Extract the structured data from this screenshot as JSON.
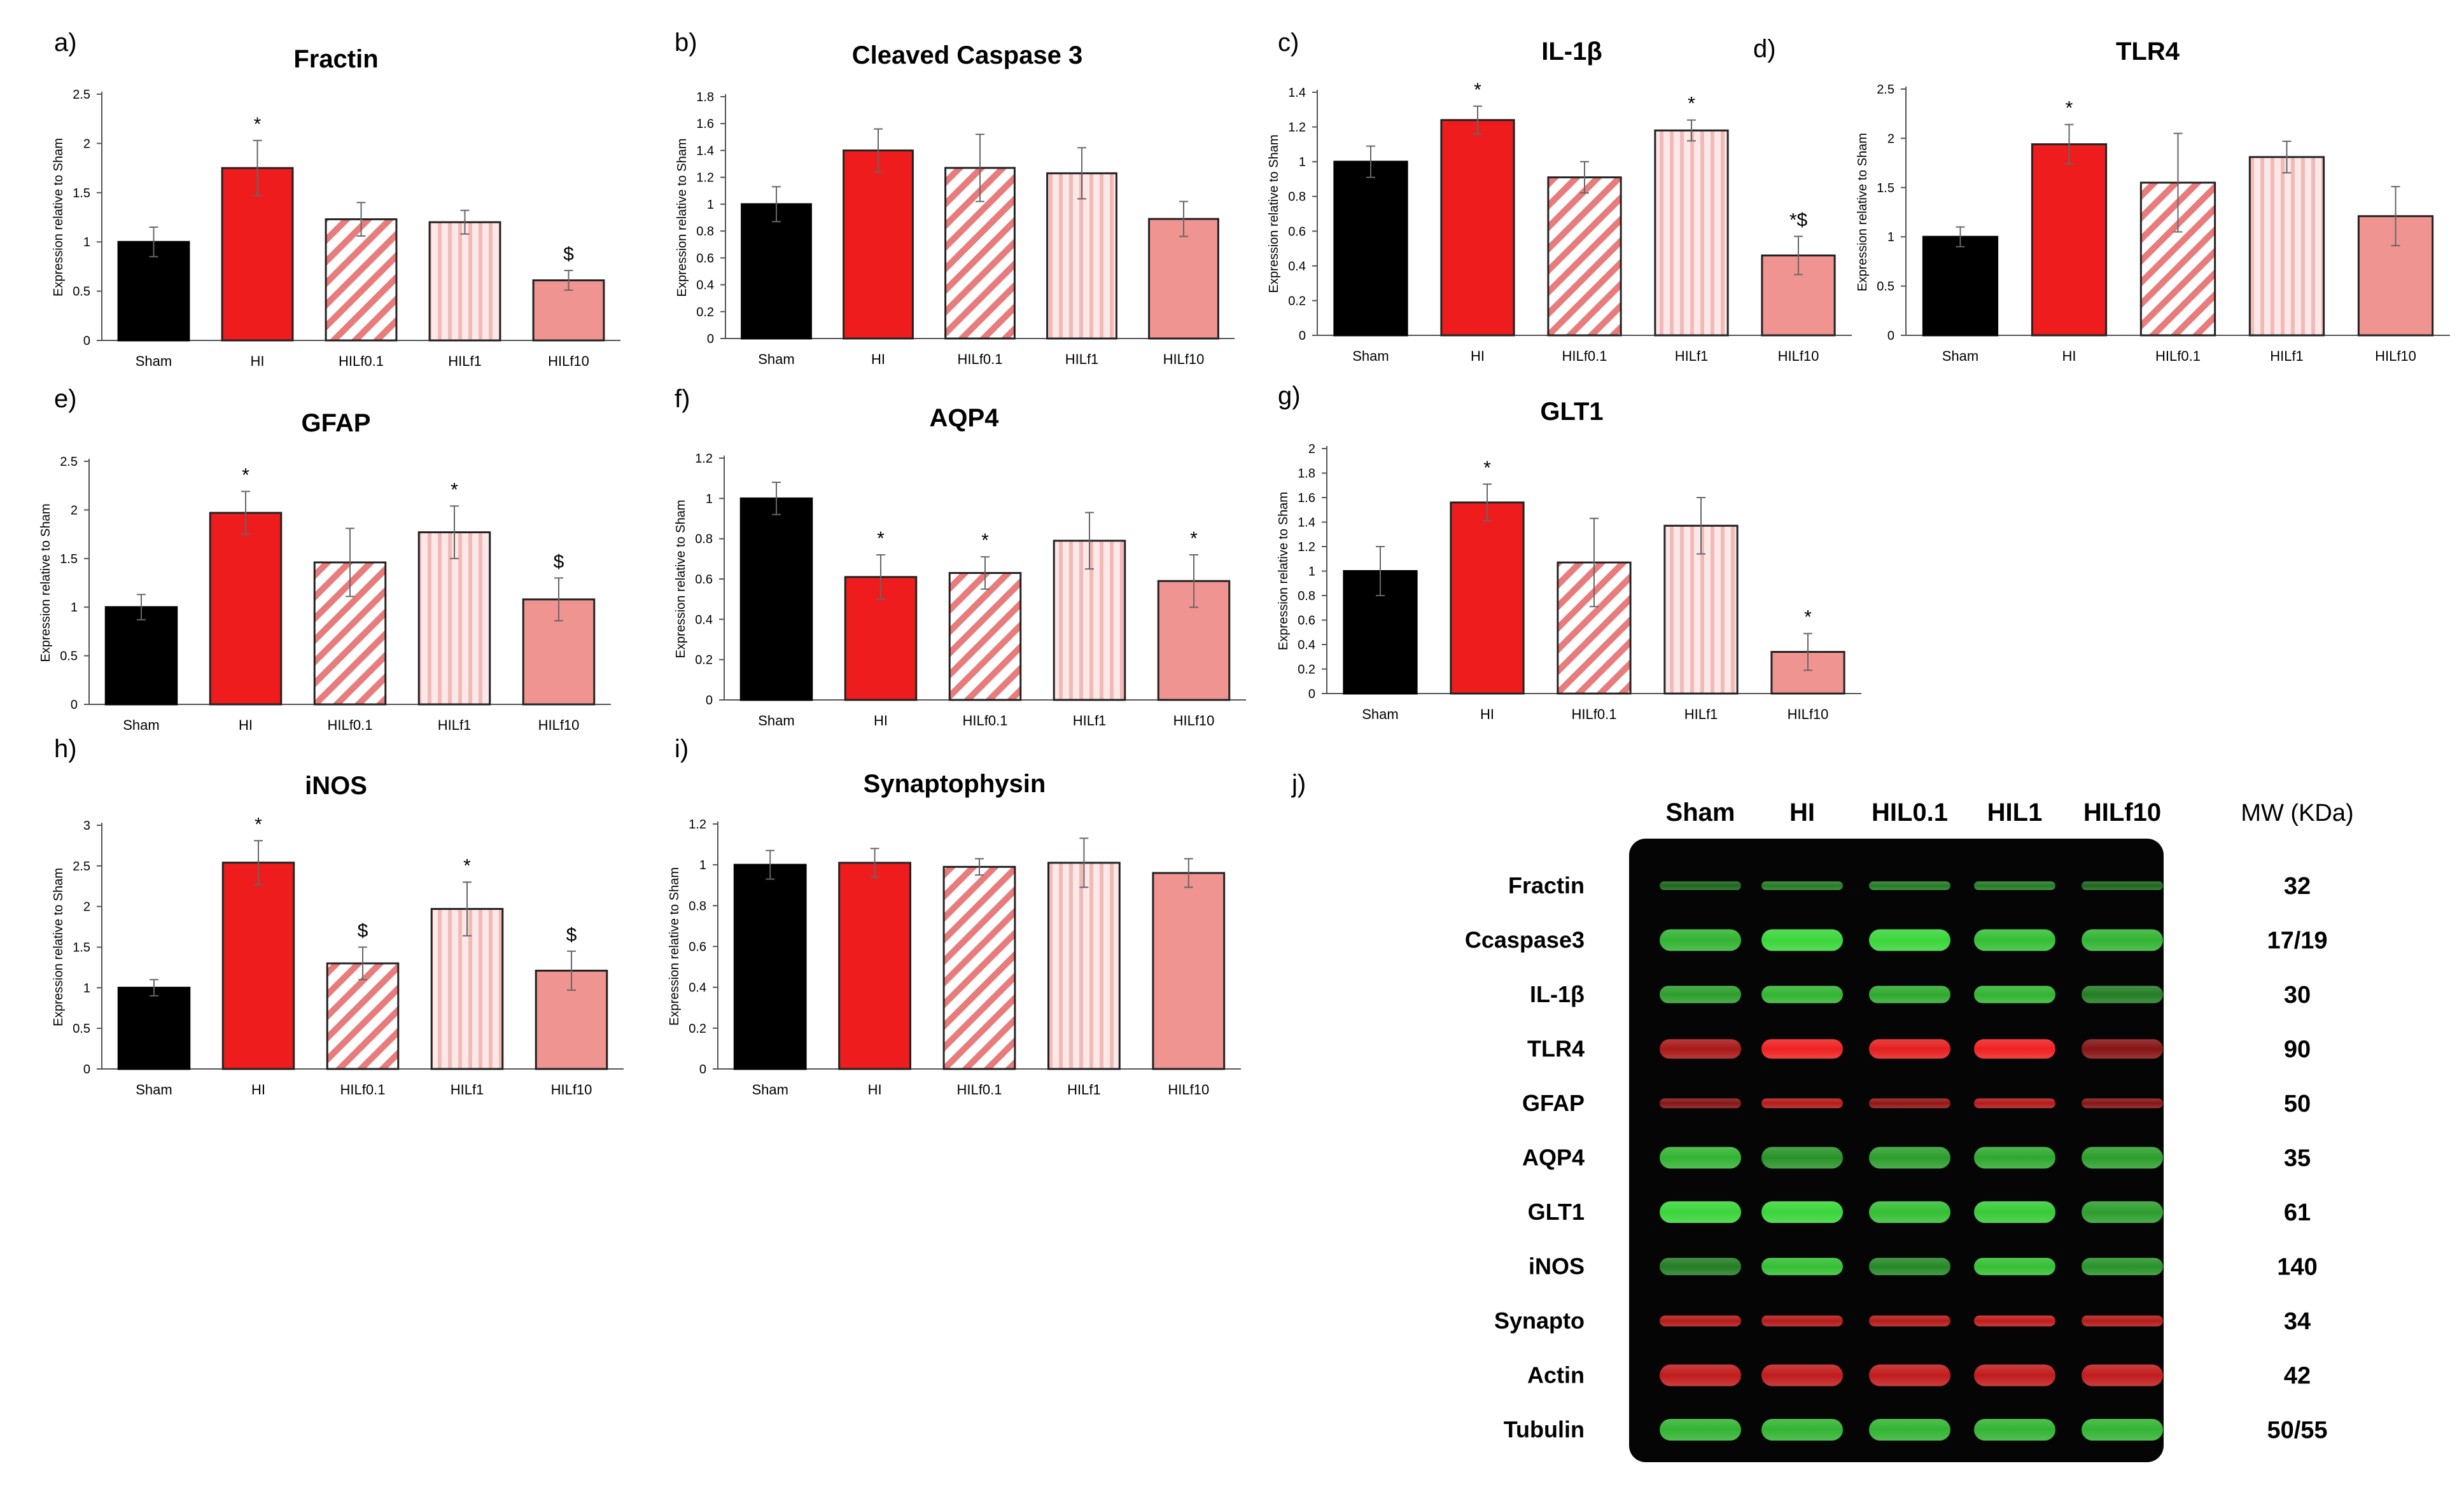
{
  "colors": {
    "sham": "#000000",
    "hi": "#ee1c1c",
    "hilf01_stripe": "#e87b7b",
    "hilf1_stripe": "#f2b9b9",
    "hilf10": "#ef9491",
    "green_band": "#3ee03e",
    "red_band": "#f02222",
    "blot_bg": "#050505"
  },
  "chart_data": [
    {
      "id": "a",
      "letter": "a)",
      "type": "bar",
      "title": "Fractin",
      "categories": [
        "Sham",
        "HI",
        "HILf0.1",
        "HILf1",
        "HILf10"
      ],
      "values": [
        1.0,
        1.75,
        1.23,
        1.2,
        0.61
      ],
      "errors": [
        0.15,
        0.28,
        0.17,
        0.12,
        0.1
      ],
      "markers": [
        "",
        "*",
        "",
        "",
        "$"
      ],
      "ylabel": "Expression relative to Sham",
      "ylim": [
        0,
        2.5
      ],
      "yticks": [
        0,
        0.5,
        1,
        1.5,
        2,
        2.5
      ],
      "yticklabels": [
        "0",
        "0.5",
        "1",
        "1.5",
        "2",
        "2.5"
      ]
    },
    {
      "id": "b",
      "letter": "b)",
      "type": "bar",
      "title": "Cleaved Caspase 3",
      "categories": [
        "Sham",
        "HI",
        "HILf0.1",
        "HILf1",
        "HILf10"
      ],
      "values": [
        1.0,
        1.4,
        1.27,
        1.23,
        0.89
      ],
      "errors": [
        0.13,
        0.16,
        0.25,
        0.19,
        0.13
      ],
      "markers": [
        "",
        "",
        "",
        "",
        ""
      ],
      "ylabel": "Expression relative to Sham",
      "ylim": [
        0,
        1.8
      ],
      "yticks": [
        0,
        0.2,
        0.4,
        0.6,
        0.8,
        1,
        1.2,
        1.4,
        1.6,
        1.8
      ],
      "yticklabels": [
        "0",
        "0.2",
        "0.4",
        "0.6",
        "0.8",
        "1",
        "1.2",
        "1.4",
        "1.6",
        "1.8"
      ]
    },
    {
      "id": "c",
      "letter": "c)",
      "type": "bar",
      "title": "IL-1β",
      "categories": [
        "Sham",
        "HI",
        "HILf0.1",
        "HILf1",
        "HILf10"
      ],
      "values": [
        1.0,
        1.24,
        0.91,
        1.18,
        0.46
      ],
      "errors": [
        0.09,
        0.08,
        0.09,
        0.06,
        0.11
      ],
      "markers": [
        "",
        "*",
        "",
        "*",
        "*$"
      ],
      "ylabel": "Expression relative to Sham",
      "ylim": [
        0,
        1.4
      ],
      "yticks": [
        0,
        0.2,
        0.4,
        0.6,
        0.8,
        1,
        1.2,
        1.4
      ],
      "yticklabels": [
        "0",
        "0.2",
        "0.4",
        "0.6",
        "0.8",
        "1",
        "1.2",
        "1.4"
      ]
    },
    {
      "id": "d",
      "letter": "d)",
      "type": "bar",
      "title": "TLR4",
      "categories": [
        "Sham",
        "HI",
        "HILf0.1",
        "HILf1",
        "HILf10"
      ],
      "values": [
        1.0,
        1.94,
        1.55,
        1.81,
        1.21
      ],
      "errors": [
        0.1,
        0.2,
        0.5,
        0.16,
        0.3
      ],
      "markers": [
        "",
        "*",
        "",
        "",
        ""
      ],
      "ylabel": "Expression relative to Sham",
      "ylim": [
        0,
        2.5
      ],
      "yticks": [
        0,
        0.5,
        1,
        1.5,
        2,
        2.5
      ],
      "yticklabels": [
        "0",
        "0.5",
        "1",
        "1.5",
        "2",
        "2.5"
      ]
    },
    {
      "id": "e",
      "letter": "e)",
      "type": "bar",
      "title": "GFAP",
      "categories": [
        "Sham",
        "HI",
        "HILf0.1",
        "HILf1",
        "HILf10"
      ],
      "values": [
        1.0,
        1.97,
        1.46,
        1.77,
        1.08
      ],
      "errors": [
        0.13,
        0.22,
        0.35,
        0.27,
        0.22
      ],
      "markers": [
        "",
        "*",
        "",
        "*",
        "$"
      ],
      "ylabel": "Expression relative to Sham",
      "ylim": [
        0,
        2.5
      ],
      "yticks": [
        0,
        0.5,
        1,
        1.5,
        2,
        2.5
      ],
      "yticklabels": [
        "0",
        "0.5",
        "1",
        "1.5",
        "2",
        "2.5"
      ]
    },
    {
      "id": "f",
      "letter": "f)",
      "type": "bar",
      "title": "AQP4",
      "categories": [
        "Sham",
        "HI",
        "HILf0.1",
        "HILf1",
        "HILf10"
      ],
      "values": [
        1.0,
        0.61,
        0.63,
        0.79,
        0.59
      ],
      "errors": [
        0.08,
        0.11,
        0.08,
        0.14,
        0.13
      ],
      "markers": [
        "",
        "*",
        "*",
        "",
        "*"
      ],
      "ylabel": "Expression relative to Sham",
      "ylim": [
        0,
        1.2
      ],
      "yticks": [
        0,
        0.2,
        0.4,
        0.6,
        0.8,
        1,
        1.2
      ],
      "yticklabels": [
        "0",
        "0.2",
        "0.4",
        "0.6",
        "0.8",
        "1",
        "1.2"
      ]
    },
    {
      "id": "g",
      "letter": "g)",
      "type": "bar",
      "title": "GLT1",
      "categories": [
        "Sham",
        "HI",
        "HILf0.1",
        "HILf1",
        "HILf10"
      ],
      "values": [
        1.0,
        1.56,
        1.07,
        1.37,
        0.34
      ],
      "errors": [
        0.2,
        0.15,
        0.36,
        0.23,
        0.15
      ],
      "markers": [
        "",
        "*",
        "",
        "",
        "*"
      ],
      "ylabel": "Expression relative to Sham",
      "ylim": [
        0,
        2
      ],
      "yticks": [
        0,
        0.2,
        0.4,
        0.6,
        0.8,
        1,
        1.2,
        1.4,
        1.6,
        1.8,
        2
      ],
      "yticklabels": [
        "0",
        "0.2",
        "0.4",
        "0.6",
        "0.8",
        "1",
        "1.2",
        "1.4",
        "1.6",
        "1.8",
        "2"
      ]
    },
    {
      "id": "h",
      "letter": "h)",
      "type": "bar",
      "title": "iNOS",
      "categories": [
        "Sham",
        "HI",
        "HILf0.1",
        "HILf1",
        "HILf10"
      ],
      "values": [
        1.0,
        2.54,
        1.3,
        1.97,
        1.21
      ],
      "errors": [
        0.1,
        0.27,
        0.2,
        0.33,
        0.24
      ],
      "markers": [
        "",
        "*",
        "$",
        "*",
        "$"
      ],
      "ylabel": "Expression relative to Sham",
      "ylim": [
        0,
        3
      ],
      "yticks": [
        0,
        0.5,
        1,
        1.5,
        2,
        2.5,
        3
      ],
      "yticklabels": [
        "0",
        "0.5",
        "1",
        "1.5",
        "2",
        "2.5",
        "3"
      ]
    },
    {
      "id": "i",
      "letter": "i)",
      "type": "bar",
      "title": "Synaptophysin",
      "categories": [
        "Sham",
        "HI",
        "HILf0.1",
        "HILf1",
        "HILf10"
      ],
      "values": [
        1.0,
        1.01,
        0.99,
        1.01,
        0.96
      ],
      "errors": [
        0.07,
        0.07,
        0.04,
        0.12,
        0.07
      ],
      "markers": [
        "",
        "",
        "",
        "",
        ""
      ],
      "ylabel": "Expression relative to Sham",
      "ylim": [
        0,
        1.2
      ],
      "yticks": [
        0,
        0.2,
        0.4,
        0.6,
        0.8,
        1,
        1.2
      ],
      "yticklabels": [
        "0",
        "0.2",
        "0.4",
        "0.6",
        "0.8",
        "1",
        "1.2"
      ]
    }
  ],
  "western_blot": {
    "letter": "j)",
    "columns": [
      "Sham",
      "HI",
      "HIL0.1",
      "HIL1",
      "HILf10"
    ],
    "mw_header": "MW (KDa)",
    "rows": [
      {
        "protein": "Fractin",
        "mw": "32",
        "color": "green",
        "intensity": [
          0.45,
          0.55,
          0.55,
          0.55,
          0.45
        ],
        "thickness": 0.4
      },
      {
        "protein": "Ccaspase3",
        "mw": "17/19",
        "color": "green",
        "intensity": [
          0.8,
          0.95,
          0.95,
          0.85,
          0.8
        ],
        "thickness": 1.0
      },
      {
        "protein": "IL-1β",
        "mw": "30",
        "color": "green",
        "intensity": [
          0.7,
          0.8,
          0.75,
          0.8,
          0.55
        ],
        "thickness": 0.8
      },
      {
        "protein": "TLR4",
        "mw": "90",
        "color": "red",
        "intensity": [
          0.7,
          1.0,
          0.95,
          1.0,
          0.55
        ],
        "thickness": 0.9
      },
      {
        "protein": "GFAP",
        "mw": "50",
        "color": "red",
        "intensity": [
          0.55,
          0.75,
          0.6,
          0.75,
          0.55
        ],
        "thickness": 0.45
      },
      {
        "protein": "AQP4",
        "mw": "35",
        "color": "green",
        "intensity": [
          0.8,
          0.65,
          0.7,
          0.75,
          0.7
        ],
        "thickness": 1.0
      },
      {
        "protein": "GLT1",
        "mw": "61",
        "color": "green",
        "intensity": [
          0.95,
          0.95,
          0.85,
          0.9,
          0.7
        ],
        "thickness": 1.0
      },
      {
        "protein": "iNOS",
        "mw": "140",
        "color": "green",
        "intensity": [
          0.55,
          0.85,
          0.6,
          0.85,
          0.65
        ],
        "thickness": 0.8
      },
      {
        "protein": "Synapto",
        "mw": "34",
        "color": "red",
        "intensity": [
          0.75,
          0.75,
          0.75,
          0.8,
          0.75
        ],
        "thickness": 0.5
      },
      {
        "protein": "Actin",
        "mw": "42",
        "color": "red",
        "intensity": [
          0.8,
          0.8,
          0.8,
          0.8,
          0.8
        ],
        "thickness": 1.0
      },
      {
        "protein": "Tubulin",
        "mw": "50/55",
        "color": "green",
        "intensity": [
          0.8,
          0.8,
          0.8,
          0.8,
          0.8
        ],
        "thickness": 1.0
      }
    ]
  }
}
